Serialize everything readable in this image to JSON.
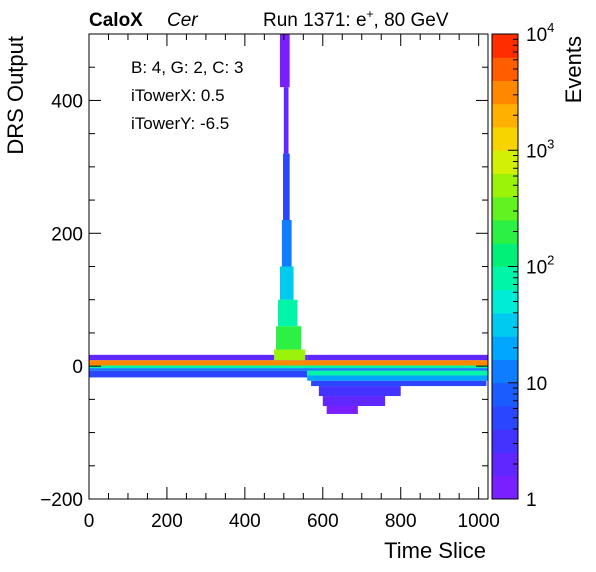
{
  "header": {
    "brand": "CaloX",
    "channel": "Cer",
    "run_prefix": "Run 1371: e",
    "run_sup": "+",
    "run_suffix": ", 80 GeV"
  },
  "info": {
    "line1": "B: 4, G: 2, C: 3",
    "line2": "iTowerX: 0.5",
    "line3": "iTowerY: -6.5"
  },
  "chart_data": {
    "type": "heatmap",
    "title": "",
    "xlabel": "Time Slice",
    "ylabel": "DRS Output",
    "zlabel": "Events",
    "xlim": [
      0,
      1024
    ],
    "ylim": [
      -200,
      500
    ],
    "zlim": [
      1,
      10000
    ],
    "z_scale": "log",
    "x_ticks": [
      0,
      200,
      400,
      600,
      800,
      1000
    ],
    "y_ticks": [
      -200,
      0,
      200,
      400
    ],
    "z_ticks": [
      1,
      10,
      100,
      1000,
      10000
    ],
    "x_tick_labels": [
      "0",
      "200",
      "400",
      "600",
      "800",
      "1000"
    ],
    "y_tick_labels": [
      "−200",
      "0",
      "200",
      "400"
    ],
    "z_tick_labels": [
      {
        "base": "1",
        "exp": ""
      },
      {
        "base": "10",
        "exp": ""
      },
      {
        "base": "10",
        "exp": "2"
      },
      {
        "base": "10",
        "exp": "3"
      },
      {
        "base": "10",
        "exp": "4"
      }
    ],
    "palette": [
      "#7a1fff",
      "#6028ff",
      "#4433ff",
      "#2a46ff",
      "#1a5cff",
      "#0f7dff",
      "#00a6ff",
      "#00caf0",
      "#00ecd6",
      "#00f5a8",
      "#00f078",
      "#2cf043",
      "#62f221",
      "#9cf30a",
      "#d2f005",
      "#f7d400",
      "#ffb000",
      "#ff8800",
      "#ff5d00",
      "#ff2d00"
    ],
    "bins": [
      {
        "x": [
          0,
          1024
        ],
        "y": [
          1,
          9
        ],
        "z": 3000
      },
      {
        "x": [
          0,
          1024
        ],
        "y": [
          -3,
          1
        ],
        "z": 80
      },
      {
        "x": [
          0,
          1024
        ],
        "y": [
          -7,
          -3
        ],
        "z": 15
      },
      {
        "x": [
          0,
          560
        ],
        "y": [
          -17,
          -7
        ],
        "z": 6
      },
      {
        "x": [
          0,
          560
        ],
        "y": [
          9,
          17
        ],
        "z": 2
      },
      {
        "x": [
          560,
          1024
        ],
        "y": [
          9,
          17
        ],
        "z": 2
      },
      {
        "x": [
          560,
          1024
        ],
        "y": [
          -14,
          -7
        ],
        "z": 80
      },
      {
        "x": [
          560,
          1024
        ],
        "y": [
          -22,
          -14
        ],
        "z": 25
      },
      {
        "x": [
          570,
          1020
        ],
        "y": [
          -30,
          -22
        ],
        "z": 5
      },
      {
        "x": [
          590,
          800
        ],
        "y": [
          -45,
          -30
        ],
        "z": 3
      },
      {
        "x": [
          600,
          760
        ],
        "y": [
          -60,
          -45
        ],
        "z": 2
      },
      {
        "x": [
          610,
          690
        ],
        "y": [
          -72,
          -60
        ],
        "z": 1
      },
      {
        "x": [
          475,
          555
        ],
        "y": [
          9,
          25
        ],
        "z": 400
      },
      {
        "x": [
          480,
          545
        ],
        "y": [
          25,
          60
        ],
        "z": 200
      },
      {
        "x": [
          485,
          535
        ],
        "y": [
          60,
          100
        ],
        "z": 80
      },
      {
        "x": [
          490,
          525
        ],
        "y": [
          100,
          150
        ],
        "z": 30
      },
      {
        "x": [
          495,
          520
        ],
        "y": [
          150,
          220
        ],
        "z": 10
      },
      {
        "x": [
          498,
          515
        ],
        "y": [
          220,
          320
        ],
        "z": 4
      },
      {
        "x": [
          500,
          512
        ],
        "y": [
          320,
          420
        ],
        "z": 2
      },
      {
        "x": [
          490,
          515
        ],
        "y": [
          420,
          500
        ],
        "z": 1
      }
    ]
  }
}
